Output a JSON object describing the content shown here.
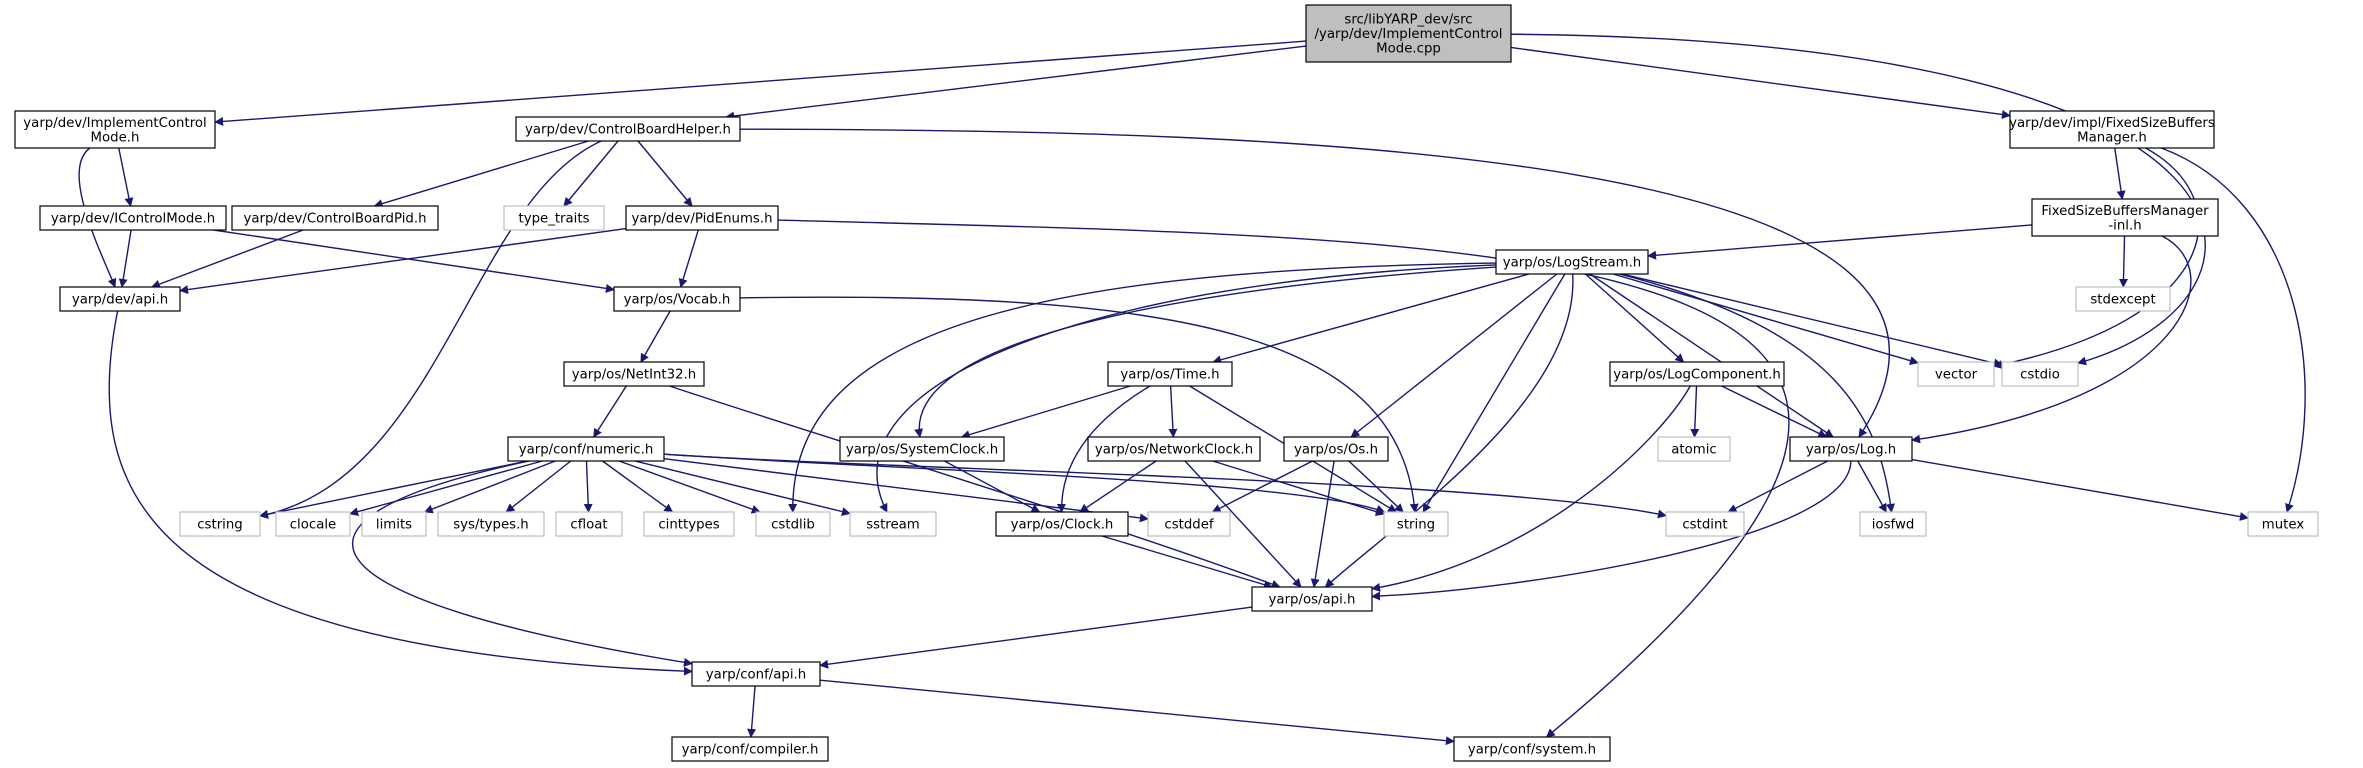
{
  "colors": {
    "edge": "#191970",
    "node_border": "#000000",
    "external_border": "#bfbfbf",
    "root_fill": "#bfbfbf",
    "external_text": "#7f7f7f"
  },
  "nodes": {
    "root": [
      "src/libYARP_dev/src",
      "/yarp/dev/ImplementControl",
      "Mode.cpp"
    ],
    "implement_control_mode_h": [
      "yarp/dev/ImplementControl",
      "Mode.h"
    ],
    "control_board_helper_h": [
      "yarp/dev/ControlBoardHelper.h"
    ],
    "fixed_size_buffers_manager_h": [
      "yarp/dev/impl/FixedSizeBuffers",
      "Manager.h"
    ],
    "icontrol_mode_h": [
      "yarp/dev/IControlMode.h"
    ],
    "control_board_pid_h": [
      "yarp/dev/ControlBoardPid.h"
    ],
    "type_traits": [
      "type_traits"
    ],
    "pid_enums_h": [
      "yarp/dev/PidEnums.h"
    ],
    "fixed_size_buffers_manager_inl_h": [
      "FixedSizeBuffersManager",
      "-inl.h"
    ],
    "dev_api_h": [
      "yarp/dev/api.h"
    ],
    "os_vocab_h": [
      "yarp/os/Vocab.h"
    ],
    "stdexcept": [
      "stdexcept"
    ],
    "os_log_stream_h": [
      "yarp/os/LogStream.h"
    ],
    "os_net_int32_h": [
      "yarp/os/NetInt32.h"
    ],
    "os_time_h": [
      "yarp/os/Time.h"
    ],
    "os_log_component_h": [
      "yarp/os/LogComponent.h"
    ],
    "vector": [
      "vector"
    ],
    "cstdio": [
      "cstdio"
    ],
    "atomic": [
      "atomic"
    ],
    "os_network_clock_h": [
      "yarp/os/NetworkClock.h"
    ],
    "conf_numeric_h": [
      "yarp/conf/numeric.h"
    ],
    "os_system_clock_h": [
      "yarp/os/SystemClock.h"
    ],
    "os_os_h": [
      "yarp/os/Os.h"
    ],
    "os_log_h": [
      "yarp/os/Log.h"
    ],
    "cstring": [
      "cstring"
    ],
    "clocale": [
      "clocale"
    ],
    "limits": [
      "limits"
    ],
    "sys_types_h": [
      "sys/types.h"
    ],
    "cfloat": [
      "cfloat"
    ],
    "cinttypes": [
      "cinttypes"
    ],
    "cstdlib": [
      "cstdlib"
    ],
    "sstream": [
      "sstream"
    ],
    "os_clock_h": [
      "yarp/os/Clock.h"
    ],
    "cstddef": [
      "cstddef"
    ],
    "string": [
      "string"
    ],
    "cstdint": [
      "cstdint"
    ],
    "iosfwd": [
      "iosfwd"
    ],
    "mutex": [
      "mutex"
    ],
    "os_api_h": [
      "yarp/os/api.h"
    ],
    "conf_api_h": [
      "yarp/conf/api.h"
    ],
    "conf_compiler_h": [
      "yarp/conf/compiler.h"
    ],
    "conf_system_h": [
      "yarp/conf/system.h"
    ]
  }
}
